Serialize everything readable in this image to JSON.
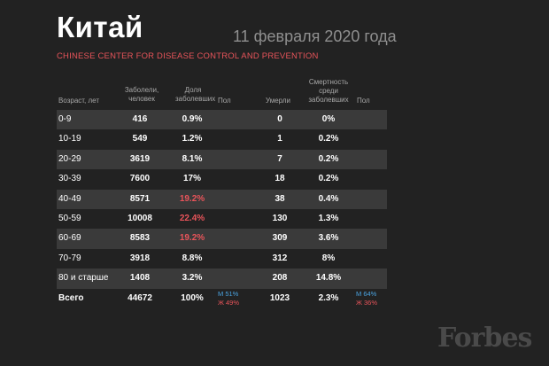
{
  "title": "Китай",
  "date": "11 февраля 2020 года",
  "source": "CHINESE CENTER FOR DISEASE CONTROL AND PREVENTION",
  "headers": {
    "age": "Возраст, лет",
    "sick": "Заболели, человек",
    "sick_share": "Доля заболевших",
    "sex_sick": "Пол",
    "died": "Умерли",
    "mortality": "Смертность среди заболевших",
    "sex_died": "Пол"
  },
  "rows": [
    {
      "age": "0-9",
      "sick": "416",
      "share": "0.9%",
      "died": "0",
      "mortality": "0%"
    },
    {
      "age": "10-19",
      "sick": "549",
      "share": "1.2%",
      "died": "1",
      "mortality": "0.2%"
    },
    {
      "age": "20-29",
      "sick": "3619",
      "share": "8.1%",
      "died": "7",
      "mortality": "0.2%"
    },
    {
      "age": "30-39",
      "sick": "7600",
      "share": "17%",
      "died": "18",
      "mortality": "0.2%"
    },
    {
      "age": "40-49",
      "sick": "8571",
      "share": "19.2%",
      "died": "38",
      "mortality": "0.4%"
    },
    {
      "age": "50-59",
      "sick": "10008",
      "share": "22.4%",
      "died": "130",
      "mortality": "1.3%"
    },
    {
      "age": "60-69",
      "sick": "8583",
      "share": "19.2%",
      "died": "309",
      "mortality": "3.6%"
    },
    {
      "age": "70-79",
      "sick": "3918",
      "share": "8.8%",
      "died": "312",
      "mortality": "8%"
    },
    {
      "age": "80 и старше",
      "sick": "1408",
      "share": "3.2%",
      "died": "208",
      "mortality": "14.8%"
    }
  ],
  "total": {
    "age": "Всего",
    "sick": "44672",
    "share": "100%",
    "died": "1023",
    "mortality": "2.3%",
    "sick_male": "М 51%",
    "sick_female": "Ж 49%",
    "died_male": "М 64%",
    "died_female": "Ж 36%"
  },
  "logo": "Forbes",
  "colors": {
    "background": "#222222",
    "highlight": "#e8545a",
    "male": "#4aa3e0",
    "female": "#e8545a",
    "row_shade": "#3a3a3a"
  }
}
